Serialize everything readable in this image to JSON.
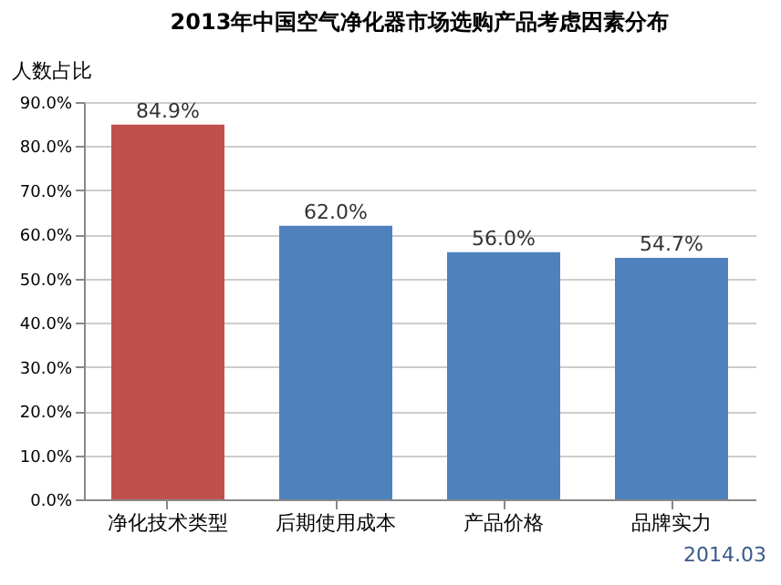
{
  "chart_data": {
    "type": "bar",
    "title": "2013年中国空气净化器市场选购产品考虑因素分布",
    "ylabel": "人数占比",
    "categories": [
      "净化技术类型",
      "后期使用成本",
      "产品价格",
      "品牌实力"
    ],
    "values": [
      84.9,
      62.0,
      56.0,
      54.7
    ],
    "colors": [
      "#c0504d",
      "#4f81bd",
      "#4f81bd",
      "#4f81bd"
    ],
    "value_labels": [
      "84.9%",
      "62.0%",
      "56.0%",
      "54.7%"
    ],
    "ylim": [
      0,
      90
    ],
    "yticks": [
      {
        "value": 0,
        "label": "0.0%"
      },
      {
        "value": 10,
        "label": "10.0%"
      },
      {
        "value": 20,
        "label": "20.0%"
      },
      {
        "value": 30,
        "label": "30.0%"
      },
      {
        "value": 40,
        "label": "40.0%"
      },
      {
        "value": 50,
        "label": "50.0%"
      },
      {
        "value": 60,
        "label": "60.0%"
      },
      {
        "value": 70,
        "label": "70.0%"
      },
      {
        "value": 80,
        "label": "80.0%"
      },
      {
        "value": 90,
        "label": "90.0%"
      }
    ],
    "grid": "y",
    "annotations": [
      "2014.03"
    ]
  }
}
